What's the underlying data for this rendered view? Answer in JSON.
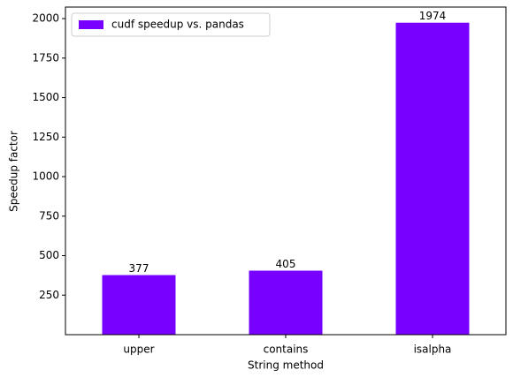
{
  "chart_data": {
    "type": "bar",
    "xlabel": "String method",
    "ylabel": "Speedup factor",
    "categories": [
      "upper",
      "contains",
      "isalpha"
    ],
    "series": [
      {
        "name": "cudf speedup vs. pandas",
        "color": "#7700ff",
        "values": [
          377,
          405,
          1974
        ],
        "value_labels": [
          "377",
          "405",
          "1974"
        ]
      }
    ],
    "ylim": [
      0,
      2073
    ],
    "yticks": [
      250,
      500,
      750,
      1000,
      1250,
      1500,
      1750,
      2000
    ],
    "legend": "upper left"
  }
}
